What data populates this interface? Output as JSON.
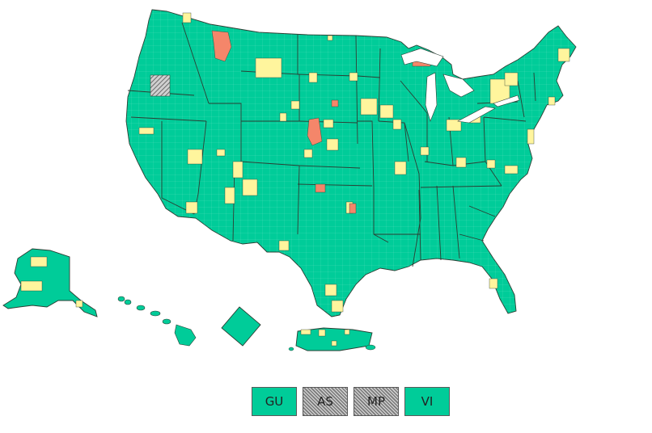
{
  "legend_colors": {
    "low": "#00cc99",
    "medium": "#fff59d",
    "high": "#f4866a",
    "no_data": "#9a9a9a"
  },
  "territories": [
    {
      "code": "GU",
      "level": "low"
    },
    {
      "code": "AS",
      "level": "no-data"
    },
    {
      "code": "MP",
      "level": "no-data"
    },
    {
      "code": "VI",
      "level": "low"
    }
  ]
}
